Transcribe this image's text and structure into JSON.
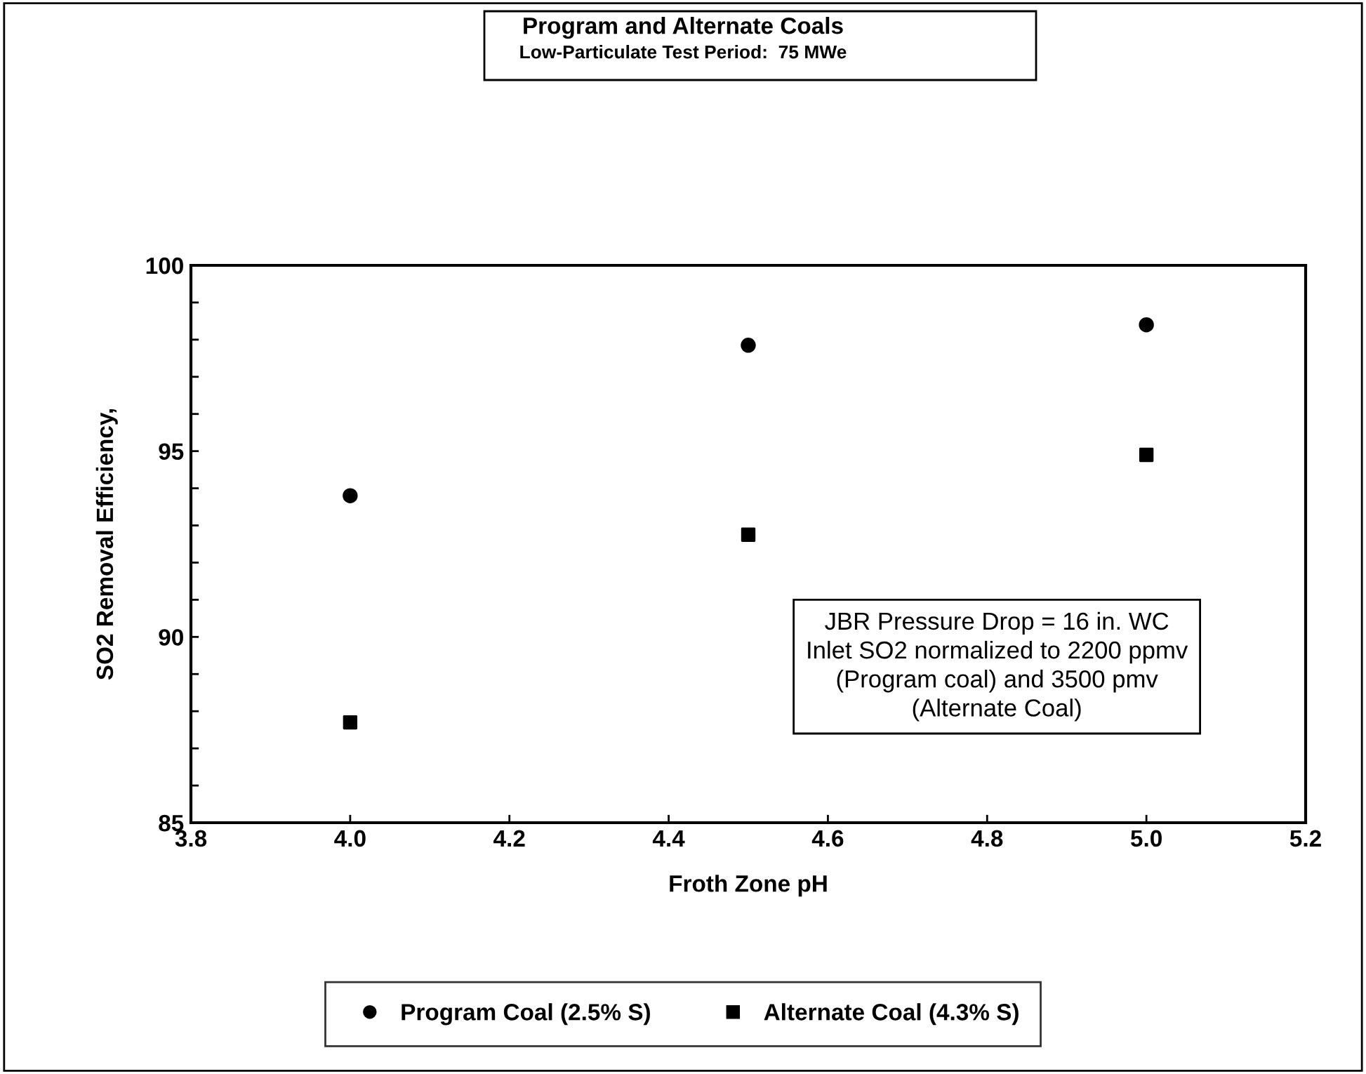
{
  "chart_data": {
    "type": "scatter",
    "title": "Program and Alternate Coals",
    "subtitle": "Low-Particulate Test Period:  75 MWe",
    "xlabel": "Froth Zone pH",
    "ylabel": "SO2 Removal Efficiency,",
    "x": [
      4.0,
      4.5,
      5.0
    ],
    "series": [
      {
        "name": "Program Coal (2.5% S)",
        "color": "#000000",
        "marker": "circle",
        "values": [
          93.8,
          97.85,
          98.4
        ]
      },
      {
        "name": "Alternate Coal (4.3% S)",
        "color": "#000000",
        "marker": "square",
        "values": [
          87.7,
          92.75,
          94.9
        ]
      }
    ],
    "xlim": [
      3.8,
      5.2
    ],
    "xticks": [
      {
        "value": 3.8,
        "label": "3.8"
      },
      {
        "value": 4.0,
        "label": "4.0"
      },
      {
        "value": 4.2,
        "label": "4.2"
      },
      {
        "value": 4.4,
        "label": "4.4"
      },
      {
        "value": 4.6,
        "label": "4.6"
      },
      {
        "value": 4.8,
        "label": "4.8"
      },
      {
        "value": 5.0,
        "label": "5.0"
      },
      {
        "value": 5.2,
        "label": "5.2"
      }
    ],
    "ylim": [
      85,
      100
    ],
    "yticks": [
      85,
      {
        "value": 86,
        "label": null
      },
      {
        "value": 87,
        "label": null
      },
      {
        "value": 88,
        "label": null
      },
      {
        "value": 89,
        "label": null
      },
      90,
      {
        "value": 91,
        "label": null
      },
      {
        "value": 92,
        "label": null
      },
      {
        "value": 93,
        "label": null
      },
      {
        "value": 94,
        "label": null
      },
      95,
      {
        "value": 96,
        "label": null
      },
      {
        "value": 97,
        "label": null
      },
      {
        "value": 98,
        "label": null
      },
      {
        "value": 99,
        "label": null
      },
      100
    ],
    "annotations": [
      "JBR Pressure Drop = 16 in. WC\nInlet SO2 normalized to 2200 ppmv\n(Program coal) and 3500 pmv\n(Alternate Coal)"
    ],
    "grid": false,
    "legend": "bottom"
  }
}
